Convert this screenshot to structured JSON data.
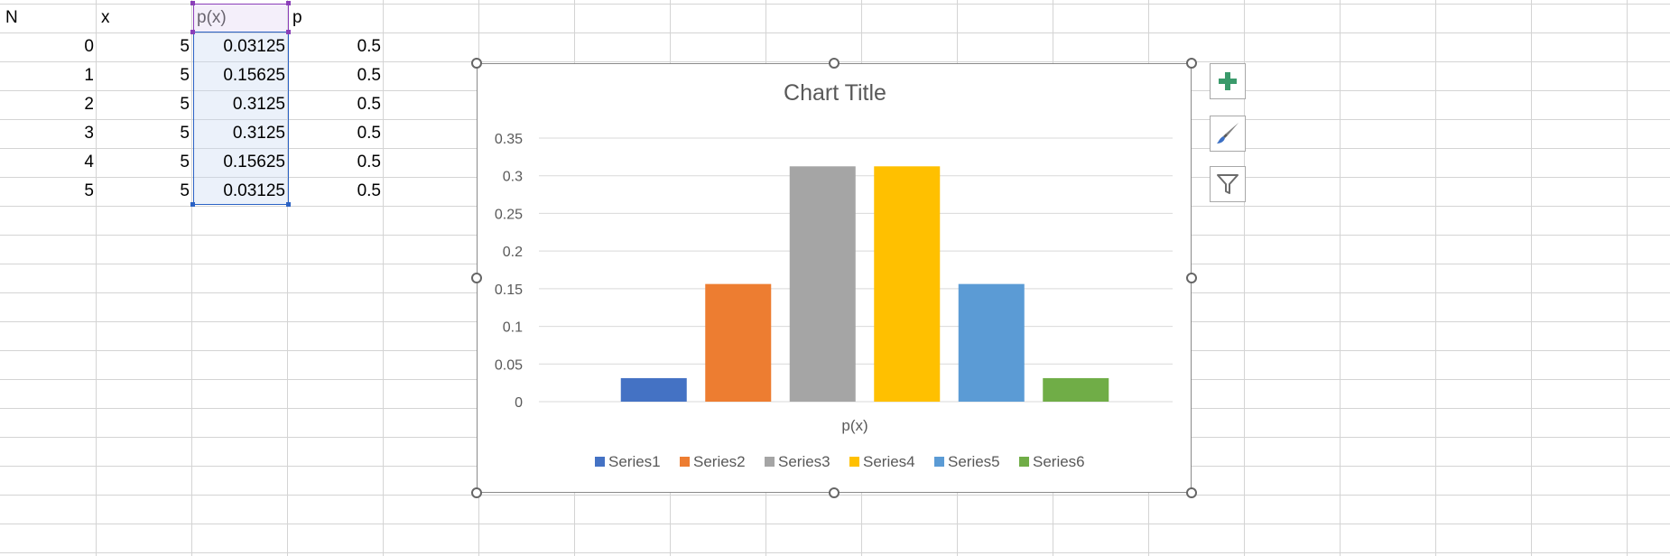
{
  "sheet": {
    "headers": [
      "N",
      "x",
      "p(x)",
      "p"
    ],
    "rows": [
      {
        "N": "0",
        "x": "5",
        "px": "0.03125",
        "p": "0.5"
      },
      {
        "N": "1",
        "x": "5",
        "px": "0.15625",
        "p": "0.5"
      },
      {
        "N": "2",
        "x": "5",
        "px": "0.3125",
        "p": "0.5"
      },
      {
        "N": "3",
        "x": "5",
        "px": "0.3125",
        "p": "0.5"
      },
      {
        "N": "4",
        "x": "5",
        "px": "0.15625",
        "p": "0.5"
      },
      {
        "N": "5",
        "x": "5",
        "px": "0.03125",
        "p": "0.5"
      }
    ]
  },
  "chart_data": {
    "type": "bar",
    "title": "Chart Title",
    "xlabel": "p(x)",
    "ylabel": "",
    "ylim": [
      0,
      0.35
    ],
    "yticks": [
      "0",
      "0.05",
      "0.1",
      "0.15",
      "0.2",
      "0.25",
      "0.3",
      "0.35"
    ],
    "grid": true,
    "legend_position": "bottom",
    "series": [
      {
        "name": "Series1",
        "values": [
          0.03125
        ],
        "color": "#4472C4"
      },
      {
        "name": "Series2",
        "values": [
          0.15625
        ],
        "color": "#ED7D31"
      },
      {
        "name": "Series3",
        "values": [
          0.3125
        ],
        "color": "#A5A5A5"
      },
      {
        "name": "Series4",
        "values": [
          0.3125
        ],
        "color": "#FFC000"
      },
      {
        "name": "Series5",
        "values": [
          0.15625
        ],
        "color": "#5B9BD5"
      },
      {
        "name": "Series6",
        "values": [
          0.03125
        ],
        "color": "#70AD47"
      }
    ]
  },
  "chart_tools": [
    {
      "name": "chart-elements-button",
      "icon": "plus-icon"
    },
    {
      "name": "chart-styles-button",
      "icon": "paintbrush-icon"
    },
    {
      "name": "chart-filters-button",
      "icon": "funnel-icon"
    }
  ],
  "colors": {
    "gridline": "#d4d4d4",
    "range_border": "#2b62c4",
    "header_border": "#8b3fb9"
  }
}
